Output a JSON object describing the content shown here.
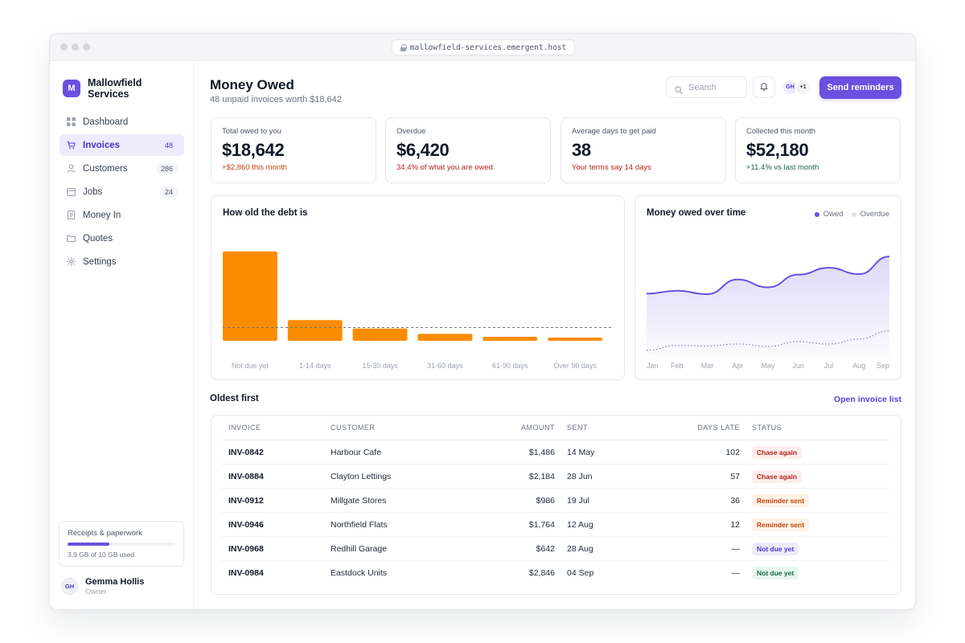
{
  "browser": {
    "url": "mallowfield-services.emergent.host"
  },
  "brand": {
    "initial": "M",
    "name": "Mallowfield Services"
  },
  "nav": [
    {
      "label": "Dashboard",
      "count": "",
      "icon": "grid-icon",
      "active": false
    },
    {
      "label": "Invoices",
      "count": "48",
      "icon": "cart-icon",
      "active": true
    },
    {
      "label": "Customers",
      "count": "286",
      "icon": "person-icon",
      "active": false
    },
    {
      "label": "Jobs",
      "count": "24",
      "icon": "calendar-icon",
      "active": false
    },
    {
      "label": "Money In",
      "count": "",
      "icon": "receipt-icon",
      "active": false
    },
    {
      "label": "Quotes",
      "count": "",
      "icon": "folder-icon",
      "active": false
    },
    {
      "label": "Settings",
      "count": "",
      "icon": "gear-icon",
      "active": false
    }
  ],
  "storage": {
    "title": "Receipts & paperwork",
    "used_text": "3.9 GB of 10 GB used",
    "fraction": 0.39
  },
  "user": {
    "initials": "GH",
    "name": "Gemma Hollis",
    "role": "Owner"
  },
  "header": {
    "title": "Money Owed",
    "subtitle": "48 unpaid invoices worth $18,642",
    "search_placeholder": "Search",
    "avatar_initials": "GH",
    "avatar_more": "+1",
    "primary_button": "Send reminders"
  },
  "stats": [
    {
      "label": "Total owed to you",
      "value": "$18,642",
      "delta": "+$2,860 this month",
      "tone": "#c2410c"
    },
    {
      "label": "Overdue",
      "value": "$6,420",
      "delta": "34.4% of what you are owed",
      "tone": "#b42318"
    },
    {
      "label": "Average days to get paid",
      "value": "38",
      "delta": "Your terms say 14 days",
      "tone": "#b42318"
    },
    {
      "label": "Collected this month",
      "value": "$52,180",
      "delta": "+11.4% vs last month",
      "tone": "#166b45"
    }
  ],
  "colors": {
    "accent": "#6b4fe0",
    "bar": "#fb8c00",
    "overdue_line": "#b9b2cf"
  },
  "chart_data": [
    {
      "type": "bar",
      "title": "How old the debt is",
      "categories": [
        "Not due yet",
        "1-14 days",
        "15-30 days",
        "31-60 days",
        "61-90 days",
        "Over 90 days"
      ],
      "values": [
        8400,
        1950,
        1150,
        650,
        380,
        150
      ],
      "reference_line": 1250,
      "ylim": [
        0,
        10200
      ],
      "grid": false
    },
    {
      "type": "area",
      "title": "Money owed over time",
      "categories": [
        "Jan",
        "Feb",
        "Mar",
        "Apr",
        "May",
        "Jun",
        "Jul",
        "Aug",
        "Sep"
      ],
      "series": [
        {
          "name": "Owed",
          "values": [
            12600,
            13200,
            12500,
            15500,
            13900,
            16500,
            17900,
            16600,
            20200
          ],
          "color": "#6b4fe0"
        },
        {
          "name": "Overdue",
          "values": [
            1000,
            2000,
            1900,
            2300,
            1800,
            2800,
            2300,
            3300,
            5000
          ],
          "color": "#b9b2cf"
        }
      ],
      "ylim": [
        0,
        25000
      ],
      "legend": "top-right"
    }
  ],
  "table": {
    "title": "Oldest first",
    "link": "Open invoice list",
    "headers": {
      "invoice": "INVOICE",
      "customer": "CUSTOMER",
      "amount": "AMOUNT",
      "sent": "SENT",
      "days_late": "DAYS LATE",
      "status": "STATUS"
    },
    "rows": [
      {
        "invoice": "INV-0842",
        "customer": "Harbour Cafe",
        "amount": "$1,486",
        "sent": "14 May",
        "days_late": "102",
        "status": "Chase again",
        "tone": "red"
      },
      {
        "invoice": "INV-0884",
        "customer": "Clayton Lettings",
        "amount": "$2,184",
        "sent": "28 Jun",
        "days_late": "57",
        "status": "Chase again",
        "tone": "red"
      },
      {
        "invoice": "INV-0912",
        "customer": "Millgate Stores",
        "amount": "$986",
        "sent": "19 Jul",
        "days_late": "36",
        "status": "Reminder sent",
        "tone": "orange"
      },
      {
        "invoice": "INV-0946",
        "customer": "Northfield Flats",
        "amount": "$1,764",
        "sent": "12 Aug",
        "days_late": "12",
        "status": "Reminder sent",
        "tone": "orange"
      },
      {
        "invoice": "INV-0968",
        "customer": "Redhill Garage",
        "amount": "$642",
        "sent": "28 Aug",
        "days_late": "—",
        "status": "Not due yet",
        "tone": "purple"
      },
      {
        "invoice": "INV-0984",
        "customer": "Eastdock Units",
        "amount": "$2,846",
        "sent": "04 Sep",
        "days_late": "—",
        "status": "Not due yet",
        "tone": "green"
      }
    ]
  }
}
